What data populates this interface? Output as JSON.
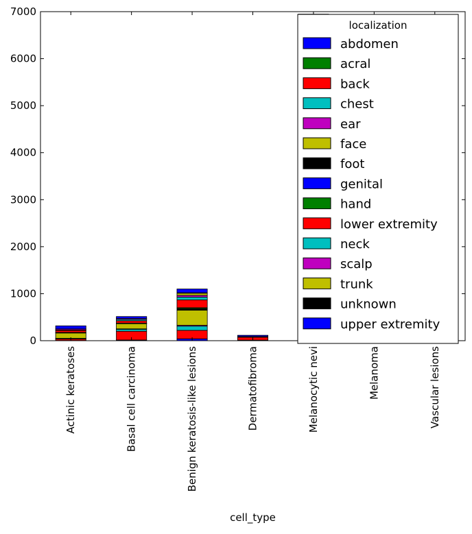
{
  "chart_data": {
    "type": "bar",
    "stacked": true,
    "xlabel": "cell_type",
    "ylabel": "",
    "ylim": [
      0,
      7000
    ],
    "yticks": [
      0,
      1000,
      2000,
      3000,
      4000,
      5000,
      6000,
      7000
    ],
    "grid": false,
    "legend": {
      "title": "localization",
      "placement": "top-right"
    },
    "categories": [
      "Actinic keratoses",
      "Basal cell carcinoma",
      "Benign keratosis-like lesions",
      "Dermatofibroma",
      "Melanocytic nevi",
      "Melanoma",
      "Vascular lesions"
    ],
    "series": [
      {
        "name": "abdomen",
        "color": "#0000ff",
        "values": [
          5,
          15,
          40,
          2,
          860,
          60,
          10
        ]
      },
      {
        "name": "acral",
        "color": "#008000",
        "values": [
          0,
          0,
          0,
          0,
          7,
          0,
          0
        ]
      },
      {
        "name": "back",
        "color": "#ff0000",
        "values": [
          29,
          186,
          180,
          4,
          1750,
          280,
          18
        ]
      },
      {
        "name": "chest",
        "color": "#00bfbf",
        "values": [
          12,
          42,
          90,
          2,
          250,
          42,
          10
        ]
      },
      {
        "name": "ear",
        "color": "#bf00bf",
        "values": [
          4,
          9,
          18,
          0,
          20,
          6,
          2
        ]
      },
      {
        "name": "face",
        "color": "#bfbf00",
        "values": [
          113,
          110,
          320,
          1,
          190,
          35,
          8
        ]
      },
      {
        "name": "foot",
        "color": "#000000",
        "values": [
          4,
          7,
          30,
          2,
          250,
          20,
          5
        ]
      },
      {
        "name": "genital",
        "color": "#0000ff",
        "values": [
          0,
          0,
          4,
          0,
          40,
          0,
          2
        ]
      },
      {
        "name": "hand",
        "color": "#008000",
        "values": [
          10,
          6,
          20,
          1,
          40,
          6,
          3
        ]
      },
      {
        "name": "lower extremity",
        "color": "#ff0000",
        "values": [
          40,
          49,
          165,
          60,
          1450,
          250,
          20
        ]
      },
      {
        "name": "neck",
        "color": "#00bfbf",
        "values": [
          12,
          30,
          60,
          2,
          60,
          12,
          3
        ]
      },
      {
        "name": "scalp",
        "color": "#bf00bf",
        "values": [
          22,
          18,
          38,
          0,
          30,
          12,
          2
        ]
      },
      {
        "name": "trunk",
        "color": "#bfbf00",
        "values": [
          0,
          0,
          45,
          15,
          1200,
          250,
          30
        ]
      },
      {
        "name": "unknown",
        "color": "#000000",
        "values": [
          0,
          0,
          10,
          0,
          170,
          20,
          10
        ]
      },
      {
        "name": "upper extremity",
        "color": "#0000ff",
        "values": [
          65,
          42,
          80,
          26,
          630,
          120,
          17
        ]
      }
    ]
  }
}
